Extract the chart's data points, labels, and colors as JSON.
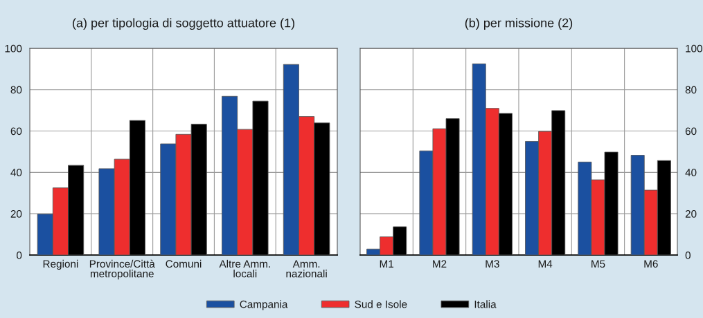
{
  "chart_data": [
    {
      "type": "bar",
      "title": "(a) per tipologia di soggetto attuatore (1)",
      "categories": [
        "Regioni",
        "Province/Città\nmetropolitane",
        "Comuni",
        "Altre Amm.\nlocali",
        "Amm.\nnazionali"
      ],
      "series": [
        {
          "name": "Campania",
          "color": "#1b50a0",
          "values": [
            19.8,
            41.8,
            53.8,
            76.8,
            92.2
          ]
        },
        {
          "name": "Sud e Isole",
          "color": "#ee2e2e",
          "values": [
            32.5,
            46.4,
            58.4,
            60.8,
            67.0
          ]
        },
        {
          "name": "Italia",
          "color": "#000000",
          "values": [
            43.4,
            65.1,
            63.3,
            74.5,
            63.9
          ]
        }
      ],
      "ylim": [
        0,
        100
      ],
      "yticks": [
        0,
        20,
        40,
        60,
        80,
        100
      ],
      "grid": true,
      "legend": "bottom"
    },
    {
      "type": "bar",
      "title": "(b) per missione (2)",
      "categories": [
        "M1",
        "M2",
        "M3",
        "M4",
        "M5",
        "M6"
      ],
      "series": [
        {
          "color": "#1b50a0",
          "axis": "y2",
          "values": [
            2.9,
            50.4,
            92.5,
            55.0,
            45.0,
            48.3
          ]
        },
        {
          "color": "#ee2e2e",
          "axis": "y2",
          "values": [
            8.8,
            61.1,
            71.0,
            59.8,
            36.4,
            31.4
          ]
        },
        {
          "color": "#000000",
          "axis": "y2",
          "values": [
            13.7,
            66.0,
            68.5,
            69.9,
            49.8,
            45.7
          ]
        }
      ],
      "y2lim": [
        0,
        100
      ],
      "y2ticks": [
        0,
        20,
        40,
        60,
        80,
        100
      ],
      "grid": true
    }
  ]
}
